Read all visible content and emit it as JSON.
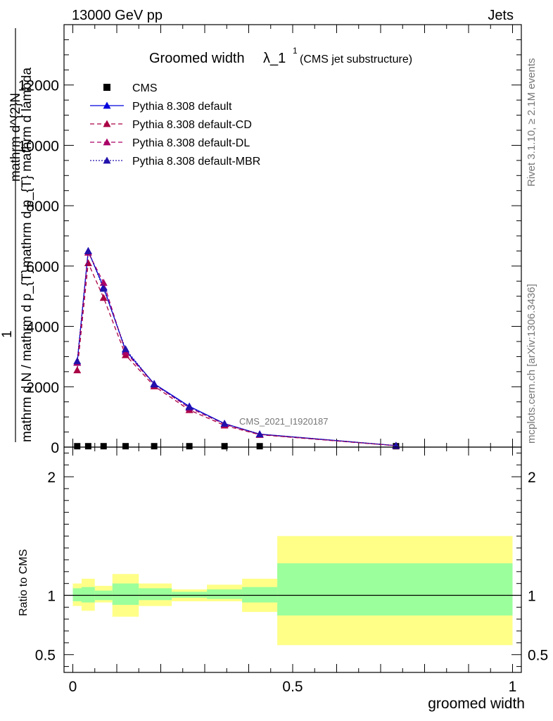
{
  "header": {
    "left": "13000 GeV pp",
    "right": "Jets"
  },
  "side": {
    "rivet": "Rivet 3.1.10, ≥ 2.1M events",
    "mcplots": "mcplots.cern.ch [arXiv:1306.3436]"
  },
  "watermark": "CMS_2021_I1920187",
  "colors": {
    "cms": "#000000",
    "default": "#0000dd",
    "cd": "#aa0044",
    "dl": "#aa0066",
    "mbr": "#2211aa",
    "band_inner": "#9bff9b",
    "band_outer": "#ffff88"
  },
  "chart_data": [
    {
      "type": "line",
      "title": "Groomed width",
      "title_symbol": "λ_1",
      "title_sup": "1",
      "title_suffix": "(CMS jet substructure)",
      "xlabel": "groomed width",
      "ylabel_numer": "mathrm d^{2}N",
      "ylabel_denom": "mathrm d p_{T} mathrm d lambda",
      "ylabel_prefix": "1",
      "ylabel_full": "mathrm d N / mathrm d p_{T}",
      "xlim": [
        -0.02,
        1.02
      ],
      "ylim": [
        0,
        14000
      ],
      "yticks": [
        0,
        2000,
        4000,
        6000,
        8000,
        10000,
        12000
      ],
      "ytick_labels": [
        "0",
        "2000",
        "4000",
        "6000",
        "8000",
        "10000",
        "12000"
      ],
      "legend": "top-left",
      "x": [
        0.01,
        0.035,
        0.07,
        0.12,
        0.185,
        0.265,
        0.345,
        0.425,
        0.735
      ],
      "series": [
        {
          "name": "CMS",
          "key": "cms",
          "style": "square",
          "values": [
            30,
            30,
            30,
            30,
            30,
            30,
            30,
            30,
            30
          ]
        },
        {
          "name": "Pythia 8.308 default",
          "key": "default",
          "style": "solid",
          "values": [
            2800,
            6500,
            5300,
            3200,
            2100,
            1350,
            780,
            430,
            50
          ]
        },
        {
          "name": "Pythia 8.308 default-CD",
          "key": "cd",
          "style": "dashed",
          "values": [
            2550,
            6100,
            4950,
            3050,
            2020,
            1230,
            720,
            410,
            45
          ]
        },
        {
          "name": "Pythia 8.308 default-DL",
          "key": "dl",
          "style": "dashed",
          "values": [
            2800,
            6450,
            5450,
            3150,
            2080,
            1300,
            760,
            420,
            48
          ]
        },
        {
          "name": "Pythia 8.308 default-MBR",
          "key": "mbr",
          "style": "dotted",
          "values": [
            2850,
            6500,
            5250,
            3250,
            2080,
            1330,
            780,
            430,
            50
          ]
        }
      ]
    },
    {
      "type": "area",
      "ylabel": "Ratio to CMS",
      "xlabel": "groomed width",
      "xlim": [
        -0.02,
        1.02
      ],
      "ylim": [
        0.35,
        2.25
      ],
      "xticks": [
        0,
        0.5,
        1
      ],
      "xtick_labels": [
        "0",
        "0.5",
        "1"
      ],
      "yticks": [
        0.5,
        1,
        2
      ],
      "ytick_labels": [
        "0.5",
        "1",
        "2"
      ],
      "reference": 1,
      "bins": [
        {
          "lo": 0.0,
          "hi": 0.02,
          "inner": [
            0.95,
            1.06
          ],
          "outer": [
            0.91,
            1.1
          ]
        },
        {
          "lo": 0.02,
          "hi": 0.05,
          "inner": [
            0.94,
            1.07
          ],
          "outer": [
            0.87,
            1.14
          ]
        },
        {
          "lo": 0.05,
          "hi": 0.09,
          "inner": [
            0.96,
            1.04
          ],
          "outer": [
            0.94,
            1.08
          ]
        },
        {
          "lo": 0.09,
          "hi": 0.15,
          "inner": [
            0.92,
            1.1
          ],
          "outer": [
            0.82,
            1.18
          ]
        },
        {
          "lo": 0.15,
          "hi": 0.225,
          "inner": [
            0.96,
            1.06
          ],
          "outer": [
            0.91,
            1.1
          ]
        },
        {
          "lo": 0.225,
          "hi": 0.305,
          "inner": [
            0.98,
            1.03
          ],
          "outer": [
            0.95,
            1.05
          ]
        },
        {
          "lo": 0.305,
          "hi": 0.385,
          "inner": [
            0.97,
            1.05
          ],
          "outer": [
            0.95,
            1.09
          ]
        },
        {
          "lo": 0.385,
          "hi": 0.465,
          "inner": [
            0.94,
            1.07
          ],
          "outer": [
            0.86,
            1.14
          ]
        },
        {
          "lo": 0.465,
          "hi": 1.0,
          "inner": [
            0.83,
            1.27
          ],
          "outer": [
            0.58,
            1.5
          ]
        }
      ]
    }
  ]
}
